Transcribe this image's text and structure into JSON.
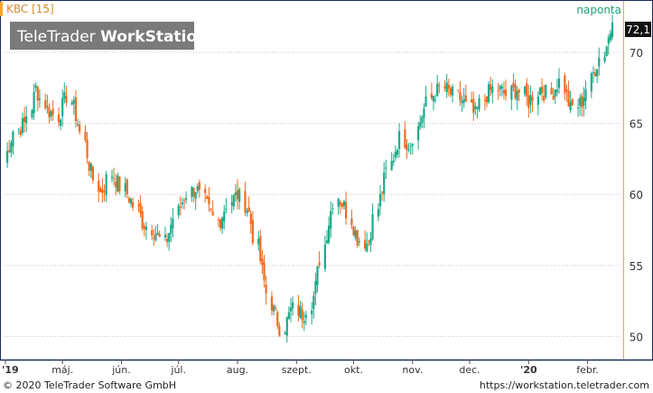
{
  "header": {
    "ticker": "KBC [15]",
    "frequency": "naponta",
    "logo_light": "TeleTrader ",
    "logo_bold": "WorkStation"
  },
  "footer": {
    "copyright": "© 2020 TeleTrader Software GmbH",
    "url": "https://workstation.teletrader.com"
  },
  "colors": {
    "up": "#1aab8a",
    "down": "#f26b1d",
    "last_price_bg": "#111111",
    "accent": "#f7a823",
    "frame": "#1c2a5a"
  },
  "chart_data": {
    "type": "candlestick",
    "last_price": "72,1",
    "ylim": [
      48.5,
      73.5
    ],
    "y_ticks": [
      50,
      55,
      60,
      65,
      70
    ],
    "x_ticks": [
      {
        "label": "'19",
        "date": "2019-04-01"
      },
      {
        "label": "máj.",
        "date": "2019-05-01"
      },
      {
        "label": "jún.",
        "date": "2019-06-01"
      },
      {
        "label": "júl.",
        "date": "2019-07-01"
      },
      {
        "label": "aug.",
        "date": "2019-08-01"
      },
      {
        "label": "szept.",
        "date": "2019-09-01"
      },
      {
        "label": "okt.",
        "date": "2019-10-01"
      },
      {
        "label": "nov.",
        "date": "2019-11-01"
      },
      {
        "label": "dec.",
        "date": "2019-12-01"
      },
      {
        "label": "'20",
        "date": "2020-01-01"
      },
      {
        "label": "febr.",
        "date": "2020-02-01"
      }
    ],
    "grid": true,
    "close_path": [
      62.5,
      64.5,
      65.0,
      67.5,
      66.0,
      65.5,
      67.0,
      65.0,
      62.0,
      60.0,
      61.5,
      60.5,
      59.5,
      58.0,
      57.5,
      56.5,
      58.5,
      60.0,
      60.5,
      59.0,
      58.0,
      59.5,
      60.0,
      58.5,
      55.0,
      52.0,
      50.5,
      52.0,
      51.5,
      53.0,
      57.0,
      60.0,
      59.0,
      57.0,
      56.5,
      59.5,
      62.0,
      64.0,
      63.5,
      65.5,
      67.0,
      67.5,
      67.0,
      66.5,
      65.5,
      67.0,
      67.5,
      67.0,
      67.5,
      66.5,
      67.5,
      67.0,
      68.0,
      66.0,
      66.5,
      68.5,
      70.0,
      72.1
    ]
  }
}
